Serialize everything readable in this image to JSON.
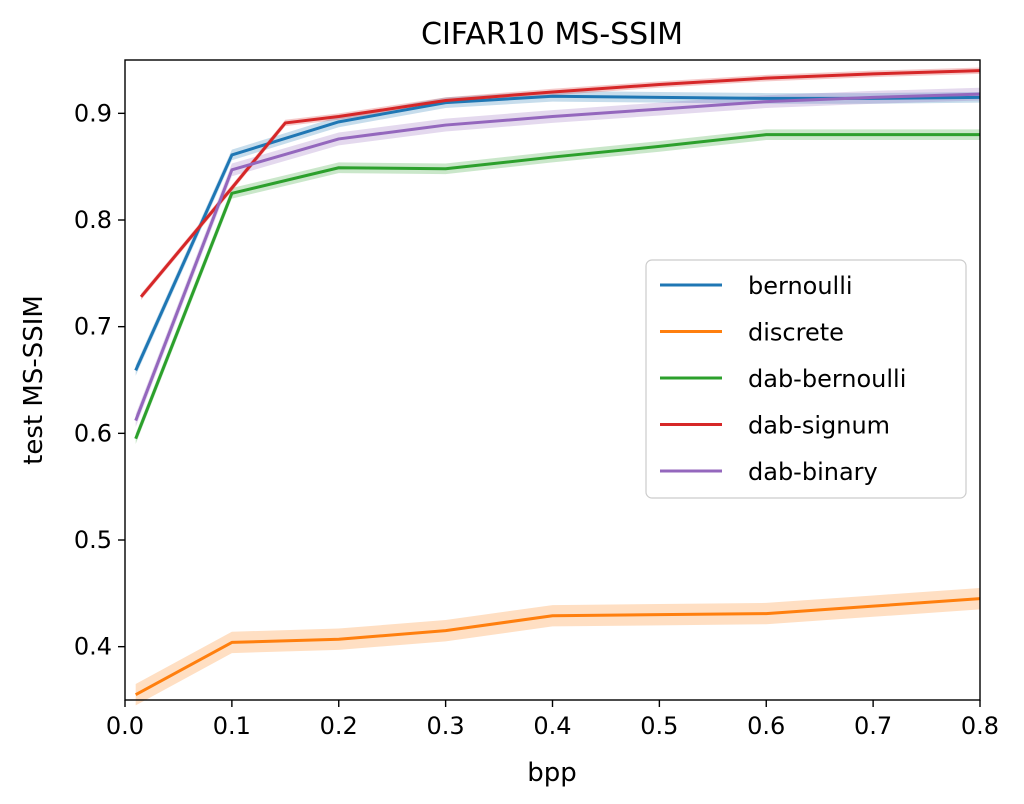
{
  "chart_data": {
    "type": "line",
    "title": "CIFAR10 MS-SSIM",
    "xlabel": "bpp",
    "ylabel": "test MS-SSIM",
    "xlim": [
      0.0,
      0.8
    ],
    "ylim": [
      0.35,
      0.95
    ],
    "xticks": [
      "0.0",
      "0.1",
      "0.2",
      "0.3",
      "0.4",
      "0.5",
      "0.6",
      "0.7",
      "0.8"
    ],
    "yticks": [
      "0.4",
      "0.5",
      "0.6",
      "0.7",
      "0.8",
      "0.9"
    ],
    "grid": false,
    "legend_position": "center-right",
    "series": [
      {
        "name": "bernoulli",
        "color": "#1f77b4",
        "x": [
          0.01,
          0.1,
          0.2,
          0.3,
          0.4,
          0.5,
          0.6,
          0.7,
          0.8
        ],
        "y": [
          0.659,
          0.861,
          0.892,
          0.91,
          0.916,
          0.915,
          0.914,
          0.914,
          0.915
        ],
        "band": 0.005
      },
      {
        "name": "discrete",
        "color": "#ff7f0e",
        "x": [
          0.01,
          0.1,
          0.2,
          0.3,
          0.4,
          0.5,
          0.6,
          0.7,
          0.8
        ],
        "y": [
          0.355,
          0.404,
          0.407,
          0.415,
          0.429,
          0.43,
          0.431,
          0.438,
          0.445
        ],
        "band": 0.01
      },
      {
        "name": "dab-bernoulli",
        "color": "#2ca02c",
        "x": [
          0.01,
          0.1,
          0.2,
          0.3,
          0.4,
          0.5,
          0.6,
          0.7,
          0.8
        ],
        "y": [
          0.595,
          0.825,
          0.849,
          0.848,
          0.859,
          0.869,
          0.88,
          0.88,
          0.88
        ],
        "band": 0.005
      },
      {
        "name": "dab-signum",
        "color": "#d62728",
        "x": [
          0.015,
          0.1,
          0.15,
          0.2,
          0.3,
          0.4,
          0.5,
          0.6,
          0.7,
          0.8
        ],
        "y": [
          0.728,
          0.83,
          0.891,
          0.897,
          0.912,
          0.92,
          0.927,
          0.933,
          0.937,
          0.94
        ],
        "band": 0.003
      },
      {
        "name": "dab-binary",
        "color": "#9467bd",
        "x": [
          0.01,
          0.1,
          0.2,
          0.3,
          0.4,
          0.5,
          0.6,
          0.7,
          0.8
        ],
        "y": [
          0.612,
          0.847,
          0.876,
          0.889,
          0.897,
          0.904,
          0.911,
          0.915,
          0.918
        ],
        "band": 0.006
      }
    ]
  }
}
